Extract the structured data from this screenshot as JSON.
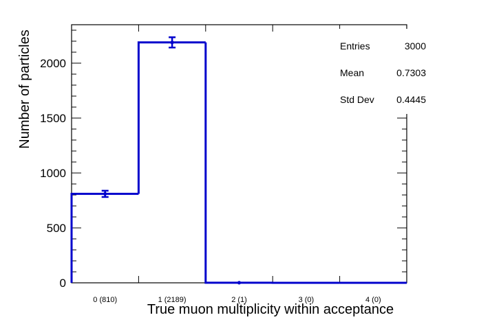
{
  "chart_data": {
    "type": "histogram",
    "xlabel": "True muon multiplicity within acceptance",
    "ylabel": "Number of particles",
    "categories": [
      "0 (810)",
      "1 (2189)",
      "2 (1)",
      "3 (0)",
      "4 (0)"
    ],
    "values": [
      810,
      2189,
      1,
      0,
      0
    ],
    "errors": [
      28.5,
      46.8,
      1.0,
      0,
      0
    ],
    "ylim": [
      0,
      2350
    ],
    "yticks": [
      0,
      500,
      1000,
      1500,
      2000
    ],
    "ytick_labels": [
      "0",
      "500",
      "1000",
      "1500",
      "2000"
    ],
    "line_color": "#0000cc",
    "stats": {
      "entries_label": "Entries",
      "entries_value": "3000",
      "mean_label": "Mean",
      "mean_value": "0.7303",
      "std_label": "Std Dev",
      "std_value": "0.4445"
    }
  }
}
